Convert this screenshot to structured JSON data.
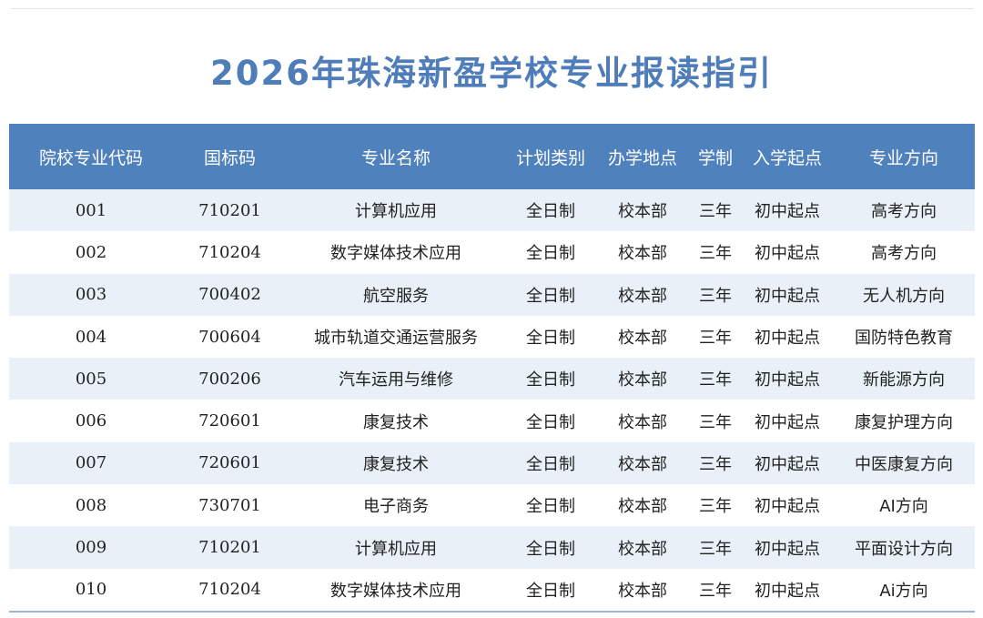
{
  "title": "2026年珠海新盈学校专业报读指引",
  "columns": [
    "院校专业代码",
    "国标码",
    "专业名称",
    "计划类别",
    "办学地点",
    "学制",
    "入学起点",
    "专业方向"
  ],
  "rows": [
    [
      "001",
      "710201",
      "计算机应用",
      "全日制",
      "校本部",
      "三年",
      "初中起点",
      "高考方向"
    ],
    [
      "002",
      "710204",
      "数字媒体技术应用",
      "全日制",
      "校本部",
      "三年",
      "初中起点",
      "高考方向"
    ],
    [
      "003",
      "700402",
      "航空服务",
      "全日制",
      "校本部",
      "三年",
      "初中起点",
      "无人机方向"
    ],
    [
      "004",
      "700604",
      "城市轨道交通运营服务",
      "全日制",
      "校本部",
      "三年",
      "初中起点",
      "国防特色教育"
    ],
    [
      "005",
      "700206",
      "汽车运用与维修",
      "全日制",
      "校本部",
      "三年",
      "初中起点",
      "新能源方向"
    ],
    [
      "006",
      "720601",
      "康复技术",
      "全日制",
      "校本部",
      "三年",
      "初中起点",
      "康复护理方向"
    ],
    [
      "007",
      "720601",
      "康复技术",
      "全日制",
      "校本部",
      "三年",
      "初中起点",
      "中医康复方向"
    ],
    [
      "008",
      "730701",
      "电子商务",
      "全日制",
      "校本部",
      "三年",
      "初中起点",
      "AI方向"
    ],
    [
      "009",
      "710201",
      "计算机应用",
      "全日制",
      "校本部",
      "三年",
      "初中起点",
      "平面设计方向"
    ],
    [
      "010",
      "710204",
      "数字媒体技术应用",
      "全日制",
      "校本部",
      "三年",
      "初中起点",
      "Ai方向"
    ]
  ],
  "colors": {
    "title": "#4f7db9",
    "header_bg": "#4f81bd",
    "header_text": "#ffffff",
    "row_stripe": "#eaf0f7"
  }
}
